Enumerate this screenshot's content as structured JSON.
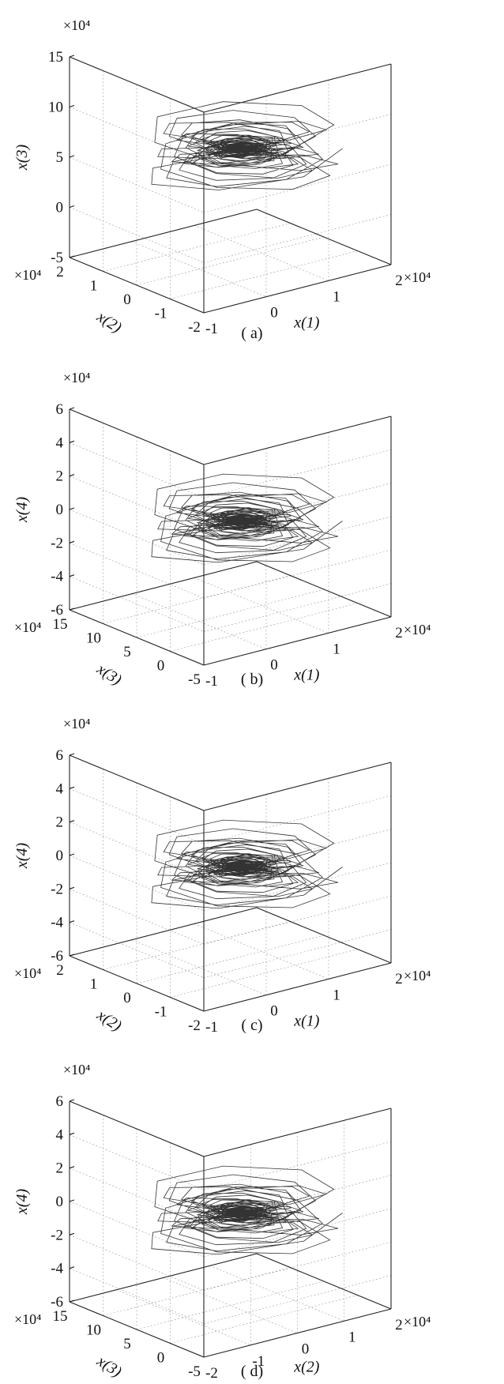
{
  "chart_data": [
    {
      "type": "line",
      "caption": "( a)",
      "zlabel": "x(3)",
      "ylabel": "x(2)",
      "xlabel": "x(1)",
      "z_ticks": [
        "15",
        "10",
        "5",
        "0",
        "-5"
      ],
      "y_ticks": [
        "2",
        "1",
        "0",
        "-1",
        "-2"
      ],
      "x_ticks": [
        "-1",
        "0",
        "1",
        "2"
      ],
      "z_mult": "×10⁴",
      "y_mult": "×10⁴",
      "x_mult": "×10⁴",
      "center_z": 7,
      "z_range": [
        -5,
        15
      ]
    },
    {
      "type": "line",
      "caption": "( b)",
      "zlabel": "x(4)",
      "ylabel": "x(3)",
      "xlabel": "x(1)",
      "z_ticks": [
        "6",
        "4",
        "2",
        "0",
        "-2",
        "-4",
        "-6"
      ],
      "y_ticks": [
        "15",
        "10",
        "5",
        "0",
        "-5"
      ],
      "x_ticks": [
        "-1",
        "0",
        "1",
        "2"
      ],
      "z_mult": "×10⁴",
      "y_mult": "×10⁴",
      "x_mult": "×10⁴",
      "center_z": 0,
      "z_range": [
        -6,
        6
      ]
    },
    {
      "type": "line",
      "caption": "( c)",
      "zlabel": "x(4)",
      "ylabel": "x(2)",
      "xlabel": "x(1)",
      "z_ticks": [
        "6",
        "4",
        "2",
        "0",
        "-2",
        "-4",
        "-6"
      ],
      "y_ticks": [
        "2",
        "1",
        "0",
        "-1",
        "-2"
      ],
      "x_ticks": [
        "-1",
        "0",
        "1",
        "2"
      ],
      "z_mult": "×10⁴",
      "y_mult": "×10⁴",
      "x_mult": "×10⁴",
      "center_z": 0,
      "z_range": [
        -6,
        6
      ]
    },
    {
      "type": "line",
      "caption": "( d)",
      "zlabel": "x(4)",
      "ylabel": "x(3)",
      "xlabel": "x(2)",
      "z_ticks": [
        "6",
        "4",
        "2",
        "0",
        "-2",
        "-4",
        "-6"
      ],
      "y_ticks": [
        "15",
        "10",
        "5",
        "0",
        "-5"
      ],
      "x_ticks": [
        "-2",
        "-1",
        "0",
        "1",
        "2"
      ],
      "z_mult": "×10⁴",
      "y_mult": "×10⁴",
      "x_mult": "×10⁴",
      "center_z": 0,
      "z_range": [
        -6,
        6
      ]
    }
  ]
}
